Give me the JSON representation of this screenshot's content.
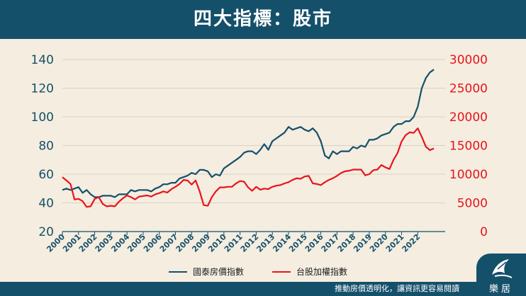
{
  "header": {
    "title": "四大指標：股市"
  },
  "footer": {
    "text": "推動房價透明化，讓資訊更容易閱讀",
    "logo_text": "樂居"
  },
  "colors": {
    "header_bg": "#15506a",
    "series_house": "#15506a",
    "series_stock": "#e8141c",
    "background": "#f4ede0"
  },
  "chart_data": {
    "type": "line",
    "title": "",
    "x_ticks": [
      "2000",
      "2001",
      "2002",
      "2003",
      "2004",
      "2005",
      "2006",
      "2007",
      "2008",
      "2009",
      "2010",
      "2011",
      "2012",
      "2013",
      "2014",
      "2015",
      "2016",
      "2017",
      "2018",
      "2019",
      "2020",
      "2021",
      "2022"
    ],
    "y_left": {
      "ticks": [
        20,
        40,
        60,
        80,
        100,
        120,
        140
      ],
      "range": [
        20,
        140
      ]
    },
    "y_right": {
      "ticks": [
        0,
        5000,
        10000,
        15000,
        20000,
        25000,
        30000
      ],
      "range": [
        0,
        30000
      ]
    },
    "x_range": [
      2000,
      2023.7
    ],
    "grid": true,
    "legend_position": "bottom-center",
    "series": [
      {
        "name": "國泰房價指數",
        "axis": "left",
        "color": "#15506a",
        "points": [
          [
            2000.0,
            49
          ],
          [
            2000.25,
            50
          ],
          [
            2000.5,
            49
          ],
          [
            2000.75,
            50
          ],
          [
            2001.0,
            51
          ],
          [
            2001.25,
            47
          ],
          [
            2001.5,
            49
          ],
          [
            2001.75,
            46
          ],
          [
            2002.0,
            44
          ],
          [
            2002.25,
            44
          ],
          [
            2002.5,
            45
          ],
          [
            2002.75,
            45
          ],
          [
            2003.0,
            45
          ],
          [
            2003.25,
            44
          ],
          [
            2003.5,
            46
          ],
          [
            2003.75,
            46
          ],
          [
            2004.0,
            46
          ],
          [
            2004.25,
            49
          ],
          [
            2004.5,
            48
          ],
          [
            2004.75,
            49
          ],
          [
            2005.0,
            49
          ],
          [
            2005.25,
            49
          ],
          [
            2005.5,
            48
          ],
          [
            2005.75,
            50
          ],
          [
            2006.0,
            51
          ],
          [
            2006.25,
            53
          ],
          [
            2006.5,
            53
          ],
          [
            2006.75,
            54
          ],
          [
            2007.0,
            54
          ],
          [
            2007.25,
            57
          ],
          [
            2007.5,
            58
          ],
          [
            2007.75,
            59
          ],
          [
            2008.0,
            61
          ],
          [
            2008.25,
            60
          ],
          [
            2008.5,
            63
          ],
          [
            2008.75,
            63
          ],
          [
            2009.0,
            62
          ],
          [
            2009.25,
            58
          ],
          [
            2009.5,
            60
          ],
          [
            2009.75,
            59
          ],
          [
            2010.0,
            64
          ],
          [
            2010.25,
            66
          ],
          [
            2010.5,
            68
          ],
          [
            2010.75,
            70
          ],
          [
            2011.0,
            72
          ],
          [
            2011.25,
            75
          ],
          [
            2011.5,
            76
          ],
          [
            2011.75,
            76
          ],
          [
            2012.0,
            74
          ],
          [
            2012.25,
            77
          ],
          [
            2012.5,
            81
          ],
          [
            2012.75,
            77
          ],
          [
            2013.0,
            83
          ],
          [
            2013.25,
            85
          ],
          [
            2013.5,
            87
          ],
          [
            2013.75,
            89
          ],
          [
            2014.0,
            93
          ],
          [
            2014.25,
            91
          ],
          [
            2014.5,
            92
          ],
          [
            2014.75,
            93
          ],
          [
            2015.0,
            91
          ],
          [
            2015.25,
            90
          ],
          [
            2015.5,
            92
          ],
          [
            2015.75,
            89
          ],
          [
            2016.0,
            83
          ],
          [
            2016.25,
            73
          ],
          [
            2016.5,
            71
          ],
          [
            2016.75,
            76
          ],
          [
            2017.0,
            74
          ],
          [
            2017.25,
            76
          ],
          [
            2017.5,
            76
          ],
          [
            2017.75,
            76
          ],
          [
            2018.0,
            79
          ],
          [
            2018.25,
            78
          ],
          [
            2018.5,
            80
          ],
          [
            2018.75,
            79
          ],
          [
            2019.0,
            84
          ],
          [
            2019.25,
            84
          ],
          [
            2019.5,
            85
          ],
          [
            2019.75,
            87
          ],
          [
            2020.0,
            88
          ],
          [
            2020.25,
            89
          ],
          [
            2020.5,
            93
          ],
          [
            2020.75,
            95
          ],
          [
            2021.0,
            95
          ],
          [
            2021.25,
            97
          ],
          [
            2021.5,
            97
          ],
          [
            2021.75,
            100
          ],
          [
            2022.0,
            107
          ],
          [
            2022.25,
            120
          ],
          [
            2022.5,
            127
          ],
          [
            2022.75,
            131
          ],
          [
            2023.0,
            133
          ]
        ]
      },
      {
        "name": "台股加權指數",
        "axis": "right",
        "color": "#e8141c",
        "points": [
          [
            2000.0,
            9500
          ],
          [
            2000.25,
            8900
          ],
          [
            2000.5,
            8300
          ],
          [
            2000.75,
            5600
          ],
          [
            2001.0,
            5700
          ],
          [
            2001.25,
            5300
          ],
          [
            2001.5,
            4300
          ],
          [
            2001.75,
            4400
          ],
          [
            2002.0,
            5700
          ],
          [
            2002.25,
            6000
          ],
          [
            2002.5,
            4800
          ],
          [
            2002.75,
            4400
          ],
          [
            2003.0,
            4500
          ],
          [
            2003.25,
            4400
          ],
          [
            2003.5,
            5200
          ],
          [
            2003.75,
            5800
          ],
          [
            2004.0,
            6300
          ],
          [
            2004.25,
            6000
          ],
          [
            2004.5,
            5600
          ],
          [
            2004.75,
            6100
          ],
          [
            2005.0,
            6200
          ],
          [
            2005.25,
            6300
          ],
          [
            2005.5,
            6100
          ],
          [
            2005.75,
            6500
          ],
          [
            2006.0,
            6700
          ],
          [
            2006.25,
            7000
          ],
          [
            2006.5,
            6800
          ],
          [
            2006.75,
            7400
          ],
          [
            2007.0,
            7800
          ],
          [
            2007.25,
            8300
          ],
          [
            2007.5,
            9000
          ],
          [
            2007.75,
            8900
          ],
          [
            2008.0,
            8200
          ],
          [
            2008.25,
            8900
          ],
          [
            2008.5,
            7000
          ],
          [
            2008.75,
            4600
          ],
          [
            2009.0,
            4500
          ],
          [
            2009.25,
            6000
          ],
          [
            2009.5,
            7000
          ],
          [
            2009.75,
            7700
          ],
          [
            2010.0,
            7700
          ],
          [
            2010.25,
            7800
          ],
          [
            2010.5,
            7800
          ],
          [
            2010.75,
            8400
          ],
          [
            2011.0,
            8800
          ],
          [
            2011.25,
            8700
          ],
          [
            2011.5,
            7700
          ],
          [
            2011.75,
            7100
          ],
          [
            2012.0,
            7800
          ],
          [
            2012.25,
            7300
          ],
          [
            2012.5,
            7500
          ],
          [
            2012.75,
            7400
          ],
          [
            2013.0,
            7800
          ],
          [
            2013.25,
            8000
          ],
          [
            2013.5,
            8100
          ],
          [
            2013.75,
            8400
          ],
          [
            2014.0,
            8600
          ],
          [
            2014.25,
            9000
          ],
          [
            2014.5,
            9300
          ],
          [
            2014.75,
            9200
          ],
          [
            2015.0,
            9600
          ],
          [
            2015.25,
            9700
          ],
          [
            2015.5,
            8400
          ],
          [
            2015.75,
            8300
          ],
          [
            2016.0,
            8100
          ],
          [
            2016.25,
            8600
          ],
          [
            2016.5,
            9000
          ],
          [
            2016.75,
            9300
          ],
          [
            2017.0,
            9700
          ],
          [
            2017.25,
            10200
          ],
          [
            2017.5,
            10500
          ],
          [
            2017.75,
            10600
          ],
          [
            2018.0,
            10800
          ],
          [
            2018.25,
            10800
          ],
          [
            2018.5,
            10800
          ],
          [
            2018.75,
            9800
          ],
          [
            2019.0,
            10000
          ],
          [
            2019.25,
            10700
          ],
          [
            2019.5,
            10800
          ],
          [
            2019.75,
            11600
          ],
          [
            2020.0,
            11200
          ],
          [
            2020.25,
            10900
          ],
          [
            2020.5,
            12500
          ],
          [
            2020.75,
            13700
          ],
          [
            2021.0,
            15700
          ],
          [
            2021.25,
            16800
          ],
          [
            2021.5,
            17300
          ],
          [
            2021.75,
            17200
          ],
          [
            2022.0,
            18000
          ],
          [
            2022.25,
            16500
          ],
          [
            2022.5,
            14800
          ],
          [
            2022.75,
            14200
          ],
          [
            2023.0,
            14500
          ]
        ]
      }
    ]
  }
}
